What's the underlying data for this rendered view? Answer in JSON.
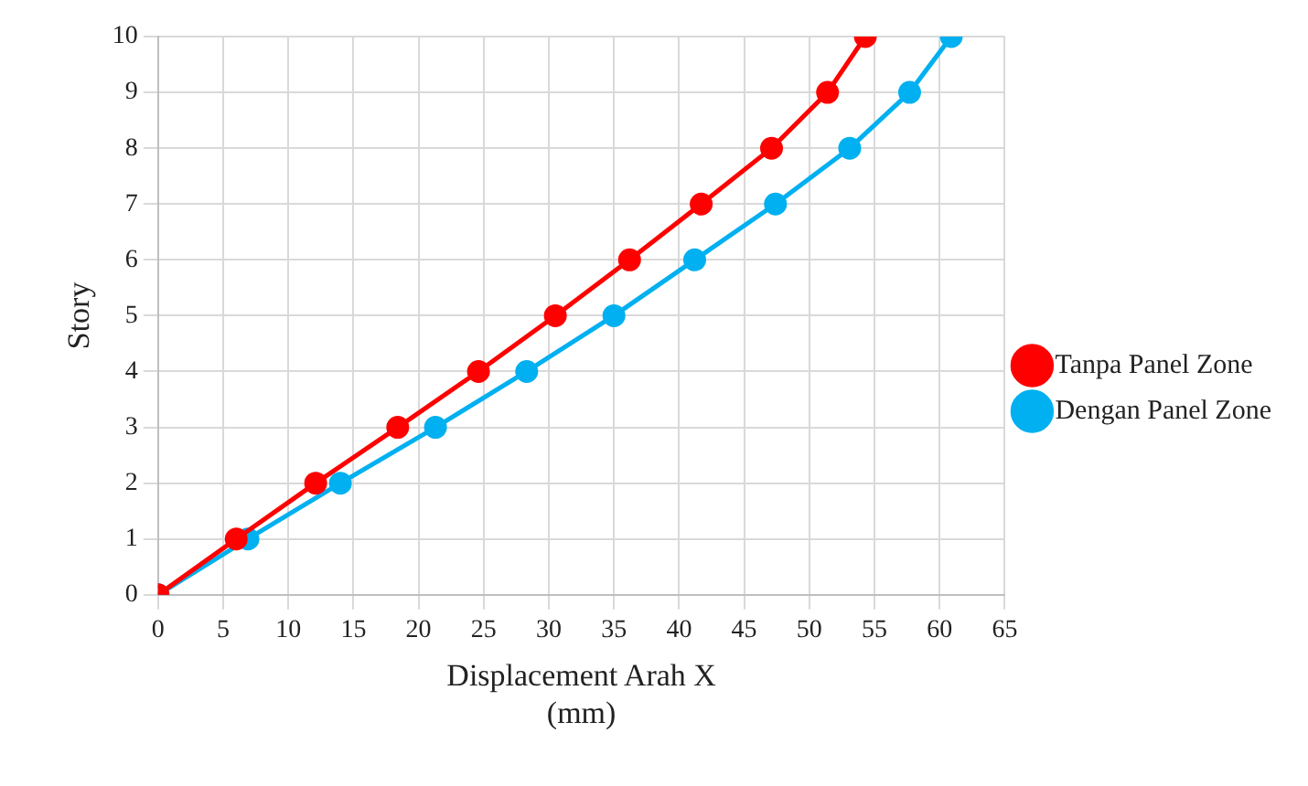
{
  "chart_data": {
    "type": "line",
    "xlabel": "Displacement Arah X\n(mm)",
    "ylabel": "Story",
    "xlim": [
      0,
      65
    ],
    "xticks": [
      0,
      5,
      10,
      15,
      20,
      25,
      30,
      35,
      40,
      45,
      50,
      55,
      60,
      65
    ],
    "ylim": [
      0,
      10
    ],
    "yticks": [
      0,
      1,
      2,
      3,
      4,
      5,
      6,
      7,
      8,
      9,
      10
    ],
    "grid": true,
    "legend": "right",
    "marker": "circle",
    "line_style": "solid",
    "series": [
      {
        "name": "Tanpa Panel Zone",
        "color": "#ff0000",
        "x": [
          0,
          6.0,
          12.1,
          18.4,
          24.6,
          30.5,
          36.2,
          41.7,
          47.1,
          51.4,
          54.3
        ],
        "values": [
          0,
          1,
          2,
          3,
          4,
          5,
          6,
          7,
          8,
          9,
          10
        ]
      },
      {
        "name": "Dengan Panel Zone",
        "color": "#00b0f0",
        "x": [
          0,
          6.9,
          14.0,
          21.3,
          28.3,
          35.0,
          41.2,
          47.4,
          53.1,
          57.7,
          60.9
        ],
        "values": [
          0,
          1,
          2,
          3,
          4,
          5,
          6,
          7,
          8,
          9,
          10
        ]
      }
    ]
  }
}
